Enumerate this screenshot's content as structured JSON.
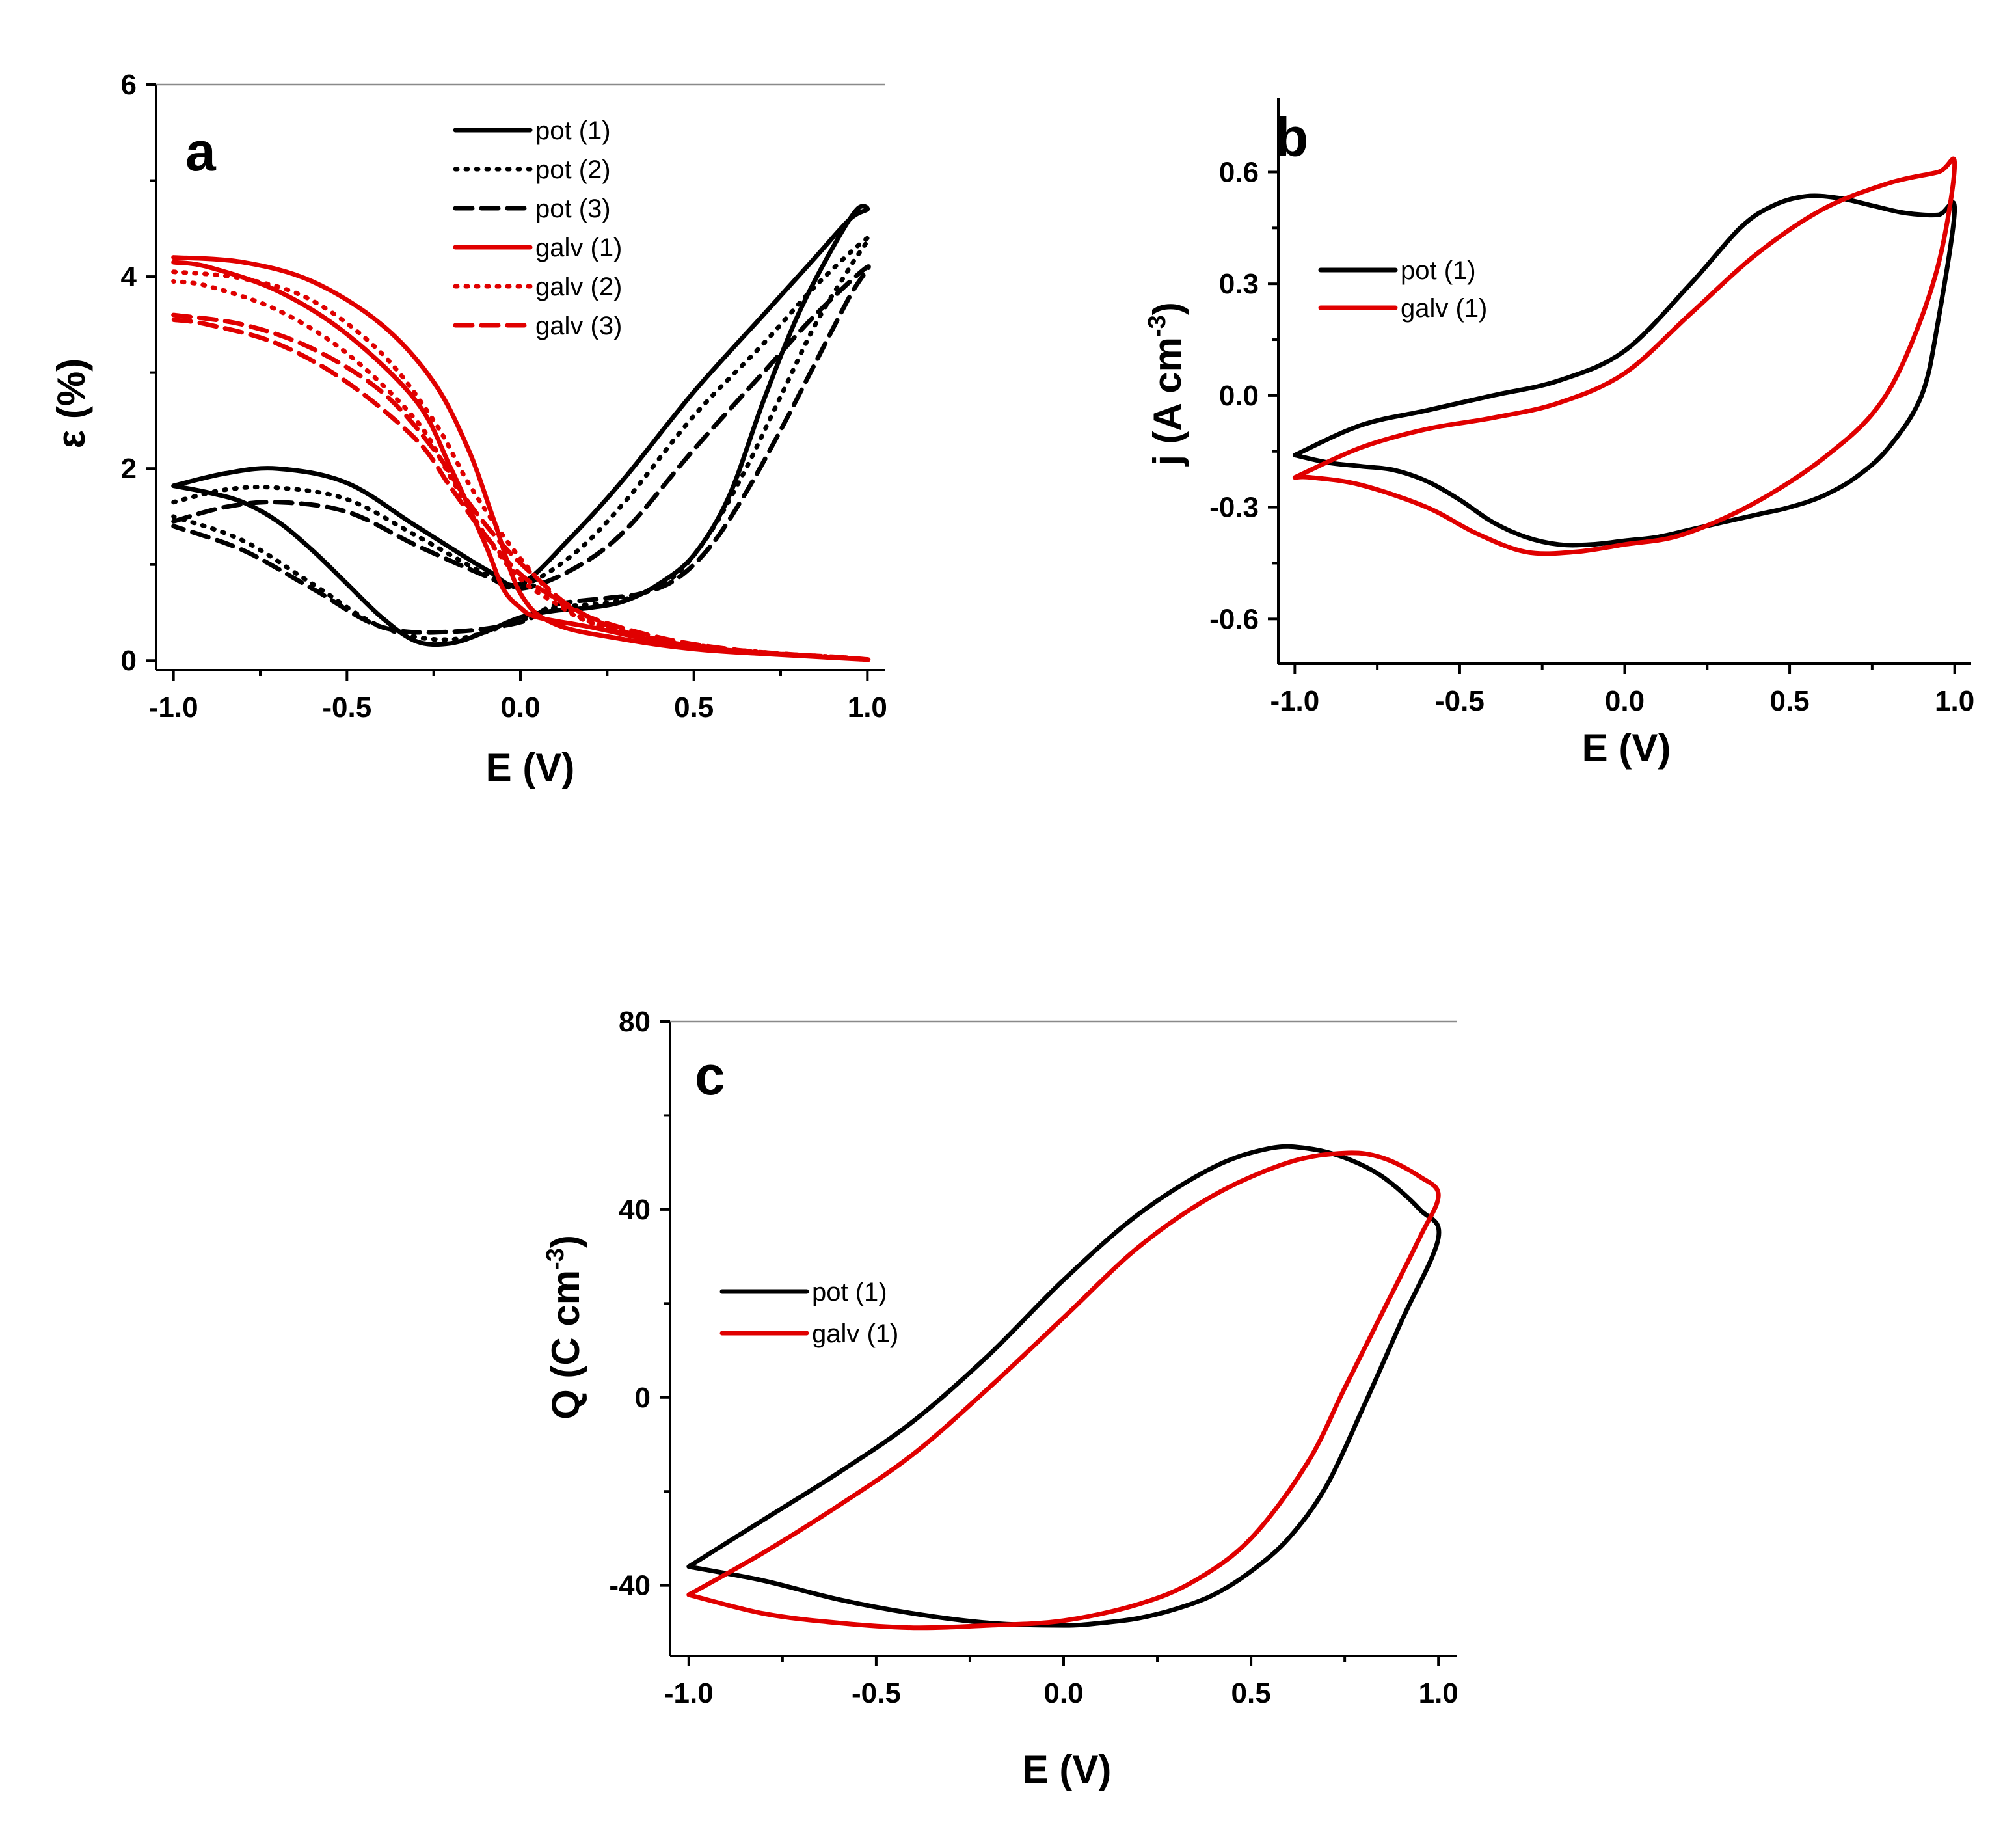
{
  "chart_data": [
    {
      "id": "a",
      "type": "line",
      "panel_label": "a",
      "xlabel": "E (V)",
      "ylabel": "ε (%)",
      "xlim": [
        -1.05,
        1.05
      ],
      "ylim": [
        -0.1,
        6
      ],
      "xticks": [
        -1.0,
        -0.5,
        0.0,
        0.5,
        1.0
      ],
      "xtick_labels": [
        "-1.0",
        "-0.5",
        "0.0",
        "0.5",
        "1.0"
      ],
      "yticks": [
        0,
        2,
        4,
        6
      ],
      "ytick_labels": [
        "0",
        "2",
        "4",
        "6"
      ],
      "legend_position": "top-center",
      "series": [
        {
          "name": "pot (1)",
          "color": "#000000",
          "style": "solid",
          "x": [
            -1.0,
            -0.85,
            -0.7,
            -0.5,
            -0.3,
            -0.1,
            0.0,
            0.15,
            0.3,
            0.5,
            0.7,
            0.85,
            0.95,
            1.0,
            0.97,
            0.9,
            0.8,
            0.7,
            0.6,
            0.5,
            0.4,
            0.3,
            0.2,
            0.1,
            0.0,
            -0.1,
            -0.2,
            -0.3,
            -0.4,
            -0.5,
            -0.6,
            -0.7,
            -0.8,
            -0.9,
            -1.0
          ],
          "y": [
            1.82,
            1.95,
            2.0,
            1.85,
            1.4,
            0.95,
            0.8,
            1.3,
            1.9,
            2.8,
            3.6,
            4.2,
            4.6,
            4.7,
            4.7,
            4.3,
            3.6,
            2.7,
            1.7,
            1.1,
            0.8,
            0.62,
            0.55,
            0.52,
            0.45,
            0.3,
            0.18,
            0.2,
            0.45,
            0.8,
            1.15,
            1.45,
            1.65,
            1.75,
            1.82
          ]
        },
        {
          "name": "pot (2)",
          "color": "#000000",
          "style": "dotted",
          "x": [
            -1.0,
            -0.85,
            -0.7,
            -0.5,
            -0.3,
            -0.1,
            0.0,
            0.15,
            0.3,
            0.5,
            0.7,
            0.85,
            1.0,
            0.95,
            0.85,
            0.75,
            0.65,
            0.55,
            0.45,
            0.35,
            0.25,
            0.1,
            0.0,
            -0.2,
            -0.4,
            -0.6,
            -0.8,
            -1.0
          ],
          "y": [
            1.65,
            1.78,
            1.8,
            1.68,
            1.3,
            0.9,
            0.78,
            1.1,
            1.65,
            2.55,
            3.3,
            3.9,
            4.4,
            4.1,
            3.5,
            2.75,
            2.0,
            1.35,
            0.9,
            0.7,
            0.6,
            0.55,
            0.42,
            0.22,
            0.35,
            0.8,
            1.25,
            1.5
          ]
        },
        {
          "name": "pot (3)",
          "color": "#000000",
          "style": "dashed",
          "x": [
            -1.0,
            -0.85,
            -0.7,
            -0.5,
            -0.3,
            -0.1,
            0.0,
            0.15,
            0.3,
            0.5,
            0.7,
            0.85,
            1.0,
            0.95,
            0.85,
            0.75,
            0.65,
            0.55,
            0.45,
            0.35,
            0.25,
            0.1,
            0.0,
            -0.2,
            -0.4,
            -0.6,
            -0.8,
            -1.0
          ],
          "y": [
            1.45,
            1.6,
            1.65,
            1.55,
            1.2,
            0.88,
            0.75,
            0.95,
            1.35,
            2.2,
            3.0,
            3.6,
            4.1,
            3.8,
            3.1,
            2.4,
            1.75,
            1.2,
            0.85,
            0.7,
            0.65,
            0.58,
            0.4,
            0.3,
            0.35,
            0.75,
            1.15,
            1.4
          ]
        },
        {
          "name": "galv (1)",
          "color": "#e00000",
          "style": "solid",
          "x": [
            -1.0,
            -0.8,
            -0.6,
            -0.4,
            -0.25,
            -0.15,
            -0.08,
            0.0,
            0.1,
            0.3,
            0.5,
            0.7,
            0.9,
            1.0,
            0.8,
            0.6,
            0.4,
            0.2,
            0.05,
            0.0,
            -0.05,
            -0.1,
            -0.2,
            -0.3,
            -0.5,
            -0.7,
            -0.9,
            -1.0
          ],
          "y": [
            4.2,
            4.15,
            3.95,
            3.5,
            2.9,
            2.2,
            1.5,
            0.7,
            0.38,
            0.22,
            0.12,
            0.07,
            0.03,
            0.01,
            0.05,
            0.1,
            0.2,
            0.35,
            0.45,
            0.55,
            0.75,
            1.2,
            2.0,
            2.7,
            3.4,
            3.85,
            4.1,
            4.15
          ]
        },
        {
          "name": "galv (2)",
          "color": "#e00000",
          "style": "dotted",
          "x": [
            -1.0,
            -0.8,
            -0.6,
            -0.4,
            -0.25,
            -0.15,
            -0.05,
            0.05,
            0.15,
            0.3,
            0.5,
            0.7,
            0.9,
            1.0,
            0.8,
            0.6,
            0.4,
            0.2,
            0.1,
            0.0,
            -0.1,
            -0.2,
            -0.3,
            -0.5,
            -0.7,
            -0.9,
            -1.0
          ],
          "y": [
            4.05,
            3.98,
            3.75,
            3.2,
            2.5,
            1.85,
            1.3,
            0.85,
            0.5,
            0.28,
            0.14,
            0.08,
            0.04,
            0.01,
            0.06,
            0.12,
            0.22,
            0.4,
            0.6,
            0.85,
            1.3,
            1.9,
            2.5,
            3.2,
            3.65,
            3.9,
            3.95
          ]
        },
        {
          "name": "galv (3)",
          "color": "#e00000",
          "style": "dashed",
          "x": [
            -1.0,
            -0.8,
            -0.6,
            -0.4,
            -0.25,
            -0.15,
            -0.05,
            0.05,
            0.15,
            0.3,
            0.5,
            0.7,
            0.9,
            1.0,
            0.8,
            0.6,
            0.4,
            0.2,
            0.1,
            0.0,
            -0.1,
            -0.2,
            -0.3,
            -0.5,
            -0.7,
            -0.9,
            -1.0
          ],
          "y": [
            3.6,
            3.5,
            3.25,
            2.8,
            2.2,
            1.65,
            1.2,
            0.85,
            0.55,
            0.3,
            0.15,
            0.08,
            0.04,
            0.01,
            0.06,
            0.12,
            0.24,
            0.45,
            0.65,
            0.9,
            1.3,
            1.8,
            2.3,
            2.9,
            3.3,
            3.5,
            3.55
          ]
        }
      ]
    },
    {
      "id": "b",
      "type": "line",
      "panel_label": "b",
      "xlabel": "E (V)",
      "ylabel": "j (A cm",
      "ylabel_superscript": "-3",
      "ylabel_suffix": ")",
      "xlim": [
        -1.05,
        1.05
      ],
      "ylim": [
        -0.72,
        0.8
      ],
      "xticks": [
        -1.0,
        -0.5,
        0.0,
        0.5,
        1.0
      ],
      "xtick_labels": [
        "-1.0",
        "-0.5",
        "0.0",
        "0.5",
        "1.0"
      ],
      "yticks": [
        -0.6,
        -0.3,
        0.0,
        0.3,
        0.6
      ],
      "ytick_labels": [
        "-0.6",
        "-0.3",
        "0.0",
        "0.3",
        "0.6"
      ],
      "legend_position": "top-left",
      "series": [
        {
          "name": "pot (1)",
          "color": "#000000",
          "style": "solid",
          "x": [
            -1.0,
            -0.8,
            -0.6,
            -0.4,
            -0.2,
            0.0,
            0.2,
            0.35,
            0.45,
            0.55,
            0.65,
            0.75,
            0.85,
            0.95,
            1.0,
            0.95,
            0.9,
            0.8,
            0.7,
            0.6,
            0.5,
            0.4,
            0.3,
            0.2,
            0.1,
            0.0,
            -0.1,
            -0.2,
            -0.3,
            -0.4,
            -0.5,
            -0.6,
            -0.7,
            -0.8,
            -0.9,
            -1.0
          ],
          "y": [
            -0.16,
            -0.08,
            -0.04,
            0.0,
            0.04,
            0.12,
            0.3,
            0.45,
            0.51,
            0.535,
            0.53,
            0.51,
            0.49,
            0.485,
            0.5,
            0.2,
            0.0,
            -0.14,
            -0.22,
            -0.27,
            -0.3,
            -0.32,
            -0.34,
            -0.36,
            -0.38,
            -0.39,
            -0.4,
            -0.4,
            -0.38,
            -0.34,
            -0.28,
            -0.23,
            -0.2,
            -0.19,
            -0.18,
            -0.16
          ]
        },
        {
          "name": "galv (1)",
          "color": "#e00000",
          "style": "solid",
          "x": [
            -1.0,
            -0.8,
            -0.6,
            -0.4,
            -0.2,
            0.0,
            0.2,
            0.4,
            0.6,
            0.8,
            0.95,
            1.0,
            0.95,
            0.85,
            0.75,
            0.6,
            0.45,
            0.3,
            0.15,
            0.0,
            -0.15,
            -0.3,
            -0.45,
            -0.6,
            -0.8,
            -0.95,
            -1.0
          ],
          "y": [
            -0.22,
            -0.14,
            -0.09,
            -0.06,
            -0.02,
            0.06,
            0.22,
            0.38,
            0.5,
            0.57,
            0.6,
            0.62,
            0.35,
            0.1,
            -0.05,
            -0.17,
            -0.26,
            -0.33,
            -0.38,
            -0.4,
            -0.42,
            -0.42,
            -0.37,
            -0.3,
            -0.24,
            -0.22,
            -0.22
          ]
        }
      ]
    },
    {
      "id": "c",
      "type": "line",
      "panel_label": "c",
      "xlabel": "E (V)",
      "ylabel": "Q (C cm",
      "ylabel_superscript": "-3",
      "ylabel_suffix": ")",
      "xlim": [
        -1.05,
        1.05
      ],
      "ylim": [
        -55,
        80
      ],
      "xticks": [
        -1.0,
        -0.5,
        0.0,
        0.5,
        1.0
      ],
      "xtick_labels": [
        "-1.0",
        "-0.5",
        "0.0",
        "0.5",
        "1.0"
      ],
      "yticks": [
        -40,
        0,
        40,
        80
      ],
      "ytick_labels": [
        "-40",
        "0",
        "40",
        "80"
      ],
      "legend_position": "center-left",
      "series": [
        {
          "name": "pot (1)",
          "color": "#000000",
          "style": "solid",
          "x": [
            -1.0,
            -0.8,
            -0.6,
            -0.4,
            -0.2,
            0.0,
            0.2,
            0.4,
            0.55,
            0.65,
            0.75,
            0.85,
            0.95,
            1.0,
            0.9,
            0.8,
            0.7,
            0.6,
            0.5,
            0.4,
            0.3,
            0.2,
            0.1,
            0.0,
            -0.2,
            -0.4,
            -0.6,
            -0.8,
            -1.0
          ],
          "y": [
            -36,
            -26,
            -16,
            -5,
            9,
            25,
            39,
            49,
            53,
            53,
            51,
            47,
            40,
            34,
            16,
            -2,
            -19,
            -30,
            -37,
            -42,
            -45,
            -47,
            -48,
            -48.5,
            -48,
            -46,
            -43,
            -39,
            -36
          ]
        },
        {
          "name": "galv (1)",
          "color": "#e00000",
          "style": "solid",
          "x": [
            -1.0,
            -0.8,
            -0.6,
            -0.4,
            -0.2,
            0.0,
            0.2,
            0.4,
            0.6,
            0.75,
            0.85,
            0.95,
            1.0,
            0.95,
            0.85,
            0.75,
            0.65,
            0.5,
            0.35,
            0.2,
            0.0,
            -0.2,
            -0.4,
            -0.6,
            -0.8,
            -1.0
          ],
          "y": [
            -42,
            -33,
            -23,
            -12,
            2,
            17,
            32,
            43,
            50,
            52,
            51,
            47,
            43,
            34,
            18,
            2,
            -14,
            -30,
            -39,
            -44,
            -47.5,
            -48.5,
            -49,
            -48,
            -46,
            -42
          ]
        }
      ]
    }
  ]
}
